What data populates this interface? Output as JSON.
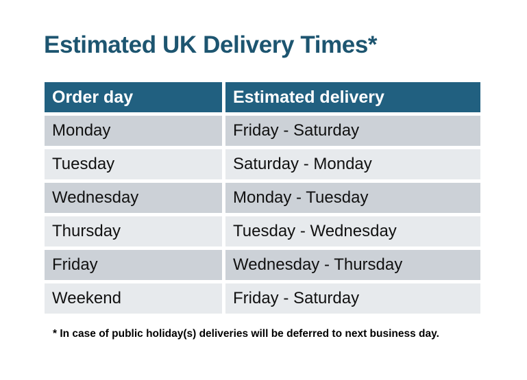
{
  "chart_data": {
    "type": "table",
    "title": "Estimated UK Delivery Times*",
    "columns": [
      "Order day",
      "Estimated delivery"
    ],
    "rows": [
      [
        "Monday",
        "Friday - Saturday"
      ],
      [
        "Tuesday",
        "Saturday - Monday"
      ],
      [
        "Wednesday",
        "Monday - Tuesday"
      ],
      [
        "Thursday",
        "Tuesday - Wednesday"
      ],
      [
        "Friday",
        "Wednesday - Thursday"
      ],
      [
        "Weekend",
        "Friday - Saturday"
      ]
    ],
    "footnote": "* In case of public holiday(s) deliveries will be deferred to next business day."
  },
  "colors": {
    "background": "#ffffff",
    "title_text": "#1d5570",
    "header_bg": "#216080",
    "header_text": "#ffffff",
    "row_dark": "#ccd1d7",
    "row_light": "#e7eaed",
    "body_text": "#111111",
    "footnote_text": "#000000"
  }
}
